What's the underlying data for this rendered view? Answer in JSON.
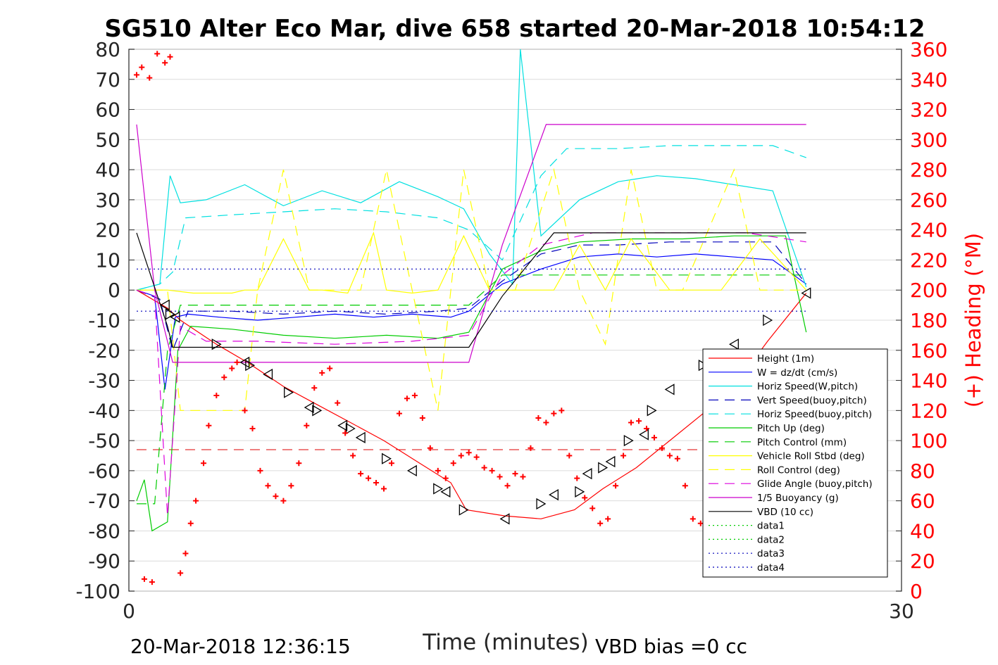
{
  "chart_data": {
    "type": "line",
    "title": "SG510 Alter Eco Mar, dive 658 started 20-Mar-2018 10:54:12",
    "xlabel": "Time (minutes)",
    "ylabel": "",
    "ylabel_right": "(+) Heading (°M)",
    "xlim": [
      0,
      30
    ],
    "ylim": [
      -100,
      80
    ],
    "ylim_right": [
      0,
      360
    ],
    "x_ticks": [
      "0",
      "30"
    ],
    "y_ticks": [
      "80",
      "70",
      "60",
      "50",
      "40",
      "30",
      "20",
      "10",
      "0",
      "-10",
      "-20",
      "-30",
      "-40",
      "-50",
      "-60",
      "-70",
      "-80",
      "-90",
      "-100"
    ],
    "y_ticks_right": [
      "360",
      "340",
      "320",
      "300",
      "280",
      "260",
      "240",
      "220",
      "200",
      "180",
      "160",
      "140",
      "120",
      "100",
      "80",
      "60",
      "40",
      "20",
      "0"
    ],
    "grid": true,
    "legend_position": "bottom-right",
    "footer_left": "20-Mar-2018 12:36:15",
    "footer_right": "VBD bias =0 cc",
    "series": [
      {
        "name": "Height (1m)",
        "color": "#ff0000",
        "style": "solid",
        "x": [
          0.3,
          1.5,
          2.0,
          3.4,
          4.6,
          6.0,
          7.3,
          8.6,
          9.9,
          11.2,
          12.5,
          13.1,
          14.6,
          16.0,
          17.3,
          18.4,
          19.7,
          21.0,
          22.3,
          23.5,
          24.8,
          26.3
        ],
        "values": [
          0,
          -6,
          -10,
          -18,
          -24,
          -32,
          -38,
          -44,
          -50,
          -57,
          -64,
          -73,
          -75,
          -76,
          -73,
          -66,
          -59,
          -50,
          -41,
          -32,
          -17,
          -1
        ]
      },
      {
        "name": "W = dz/dt (cm/s)",
        "color": "#0000ff",
        "style": "solid",
        "x": [
          0.3,
          1.0,
          1.4,
          1.8,
          2.3,
          3.5,
          5.0,
          6.5,
          8.0,
          9.5,
          11.0,
          12.5,
          13.2,
          14.5,
          16.0,
          17.5,
          19.0,
          20.5,
          22.0,
          23.5,
          25.0,
          26.3
        ],
        "values": [
          0,
          -2,
          -33,
          -9,
          -8,
          -9,
          -10,
          -9,
          -8,
          -9,
          -8,
          -9,
          -7,
          2,
          7,
          11,
          12,
          11,
          12,
          11,
          10,
          2
        ]
      },
      {
        "name": "Horiz Speed(W,pitch)",
        "color": "#00e0e0",
        "style": "solid",
        "x": [
          0.3,
          1.2,
          1.6,
          2.0,
          3.0,
          4.5,
          6.0,
          7.5,
          9.0,
          10.5,
          12.0,
          13.0,
          14.0,
          14.9,
          15.2,
          16.0,
          17.5,
          19.0,
          20.5,
          22.0,
          23.5,
          25.0,
          26.3
        ],
        "values": [
          0,
          2,
          38,
          29,
          30,
          35,
          28,
          33,
          29,
          36,
          31,
          27,
          12,
          2,
          80,
          18,
          30,
          36,
          38,
          37,
          35,
          33,
          1
        ]
      },
      {
        "name": "Vert Speed(buoy,pitch)",
        "color": "#0000bb",
        "style": "dash",
        "x": [
          0.3,
          1.2,
          1.7,
          2.3,
          4.0,
          6.0,
          8.0,
          10.0,
          12.0,
          13.2,
          14.5,
          16.0,
          17.5,
          19.0,
          21.0,
          23.0,
          25.0,
          26.3
        ],
        "values": [
          0,
          -3,
          -20,
          -7,
          -7,
          -8,
          -7,
          -8,
          -7,
          -6,
          3,
          12,
          15,
          15,
          16,
          16,
          16,
          2
        ]
      },
      {
        "name": "Horiz Speed(buoy,pitch)",
        "color": "#00e0e0",
        "style": "dash",
        "x": [
          0.3,
          1.2,
          1.7,
          2.2,
          4.0,
          6.0,
          8.0,
          10.0,
          12.0,
          13.2,
          14.5,
          16.0,
          17.0,
          19.0,
          21.0,
          23.0,
          25.0,
          26.3
        ],
        "values": [
          0,
          2,
          6,
          24,
          25,
          26,
          27,
          26,
          24,
          20,
          10,
          38,
          47,
          47,
          48,
          48,
          48,
          44
        ]
      },
      {
        "name": "Pitch Up (deg)",
        "color": "#00cc00",
        "style": "solid",
        "x": [
          0.3,
          0.6,
          0.9,
          1.5,
          1.9,
          2.4,
          4.0,
          6.0,
          8.0,
          10.0,
          12.0,
          13.2,
          14.5,
          16.0,
          17.5,
          19.5,
          21.5,
          23.5,
          25.5,
          26.3
        ],
        "values": [
          -70,
          -63,
          -80,
          -77,
          -20,
          -12,
          -13,
          -15,
          -16,
          -15,
          -16,
          -14,
          7,
          13,
          16,
          17,
          17,
          18,
          18,
          -14
        ]
      },
      {
        "name": "Pitch Control (mm)",
        "color": "#00cc00",
        "style": "dash",
        "x": [
          0.3,
          1.0,
          1.5,
          2.0,
          4.0,
          8.0,
          12.0,
          13.2,
          14.5,
          16.5,
          20.0,
          24.0,
          26.3
        ],
        "values": [
          -71,
          -71,
          -20,
          -5,
          -5,
          -5,
          -5,
          -5,
          5,
          5,
          5,
          5,
          5
        ]
      },
      {
        "name": "Vehicle Roll Stbd (deg)",
        "color": "#ffff00",
        "style": "solid",
        "x": [
          0.3,
          1.5,
          2.5,
          4.0,
          4.5,
          5.0,
          6.0,
          7.0,
          7.5,
          8.5,
          9.5,
          10.0,
          11.0,
          12.0,
          13.0,
          14.0,
          15.0,
          16.5,
          17.5,
          18.5,
          19.5,
          21.0,
          23.0,
          24.5,
          26.3
        ],
        "values": [
          0,
          0,
          -1,
          -1,
          0,
          0,
          17,
          0,
          0,
          -1,
          19,
          0,
          -1,
          0,
          18,
          0,
          0,
          0,
          15,
          0,
          17,
          0,
          0,
          17,
          0
        ]
      },
      {
        "name": "Roll Control (deg)",
        "color": "#ffff00",
        "style": "dash",
        "x": [
          0.3,
          1.5,
          2.0,
          3.5,
          4.5,
          5.0,
          6.0,
          7.0,
          8.0,
          9.0,
          10.0,
          11.0,
          12.0,
          13.0,
          14.0,
          15.0,
          16.5,
          17.5,
          18.5,
          19.5,
          20.5,
          21.5,
          23.5,
          24.5,
          26.3
        ],
        "values": [
          0,
          0,
          -40,
          -40,
          -40,
          0,
          40,
          0,
          0,
          0,
          40,
          0,
          -40,
          40,
          0,
          0,
          40,
          0,
          -18,
          40,
          0,
          0,
          40,
          0,
          0
        ]
      },
      {
        "name": "Glide Angle (buoy,pitch)",
        "color": "#dd00dd",
        "style": "dash",
        "x": [
          0.3,
          1.0,
          1.5,
          2.0,
          3.0,
          5.0,
          8.0,
          11.0,
          13.2,
          14.5,
          16.0,
          18.0,
          20.0,
          22.0,
          24.0,
          26.3
        ],
        "values": [
          0,
          -2,
          -75,
          -12,
          -17,
          -17,
          -18,
          -17,
          -15,
          5,
          15,
          19,
          19,
          19,
          19,
          16
        ]
      },
      {
        "name": "1/5 Buoyancy (g)",
        "color": "#cc00cc",
        "style": "solid",
        "x": [
          0.3,
          1.0,
          1.7,
          2.0,
          4.0,
          8.0,
          12.0,
          13.2,
          14.5,
          16.2,
          16.5,
          20.0,
          24.0,
          26.3
        ],
        "values": [
          55,
          0,
          -24,
          -24,
          -24,
          -24,
          -24,
          -24,
          15,
          55,
          55,
          55,
          55,
          55
        ]
      },
      {
        "name": "VBD (10 cc)",
        "color": "#000000",
        "style": "solid",
        "x": [
          0.3,
          1.5,
          1.7,
          4.0,
          8.0,
          12.0,
          13.2,
          14.5,
          16.5,
          20.0,
          24.0,
          26.3
        ],
        "values": [
          19,
          -12,
          -19,
          -19,
          -19,
          -19,
          -19,
          -2,
          19,
          19,
          19,
          19
        ]
      },
      {
        "name": "data1",
        "color": "#00cc00",
        "style": "dot",
        "x": [],
        "values": []
      },
      {
        "name": "data2",
        "color": "#00cc00",
        "style": "dot",
        "x": [],
        "values": []
      },
      {
        "name": "data3",
        "color": "#0000bb",
        "style": "dot",
        "x": [
          0.3,
          26.3
        ],
        "values": [
          7,
          7
        ]
      },
      {
        "name": "data4",
        "color": "#0000bb",
        "style": "dot",
        "x": [
          0.3,
          26.3
        ],
        "values": [
          -7,
          -7
        ]
      }
    ],
    "reference_line": {
      "color": "#dd0000",
      "style": "dash",
      "y": -53
    },
    "heading": {
      "color": "#ff0000",
      "marker": "+",
      "axis": "right",
      "x": [
        0.3,
        0.5,
        0.8,
        1.1,
        1.4,
        1.6,
        0.6,
        0.9,
        2.0,
        2.2,
        2.4,
        2.6,
        2.9,
        3.1,
        3.4,
        3.7,
        4.0,
        4.2,
        4.5,
        4.8,
        5.1,
        5.4,
        5.7,
        6.0,
        6.3,
        6.6,
        6.9,
        7.2,
        7.5,
        7.8,
        8.1,
        8.4,
        8.7,
        9.0,
        9.3,
        9.6,
        9.9,
        10.2,
        10.5,
        10.8,
        11.1,
        11.4,
        11.7,
        12.0,
        12.3,
        12.6,
        12.9,
        13.2,
        13.5,
        13.8,
        14.1,
        14.4,
        14.7,
        15.0,
        15.3,
        15.6,
        15.9,
        16.2,
        16.5,
        16.8,
        17.1,
        17.4,
        17.7,
        18.0,
        18.3,
        18.6,
        18.9,
        19.2,
        19.5,
        19.8,
        20.1,
        20.4,
        20.7,
        21.0,
        21.3,
        21.6,
        21.9,
        22.2,
        22.5,
        22.8,
        23.1,
        23.4,
        23.7,
        24.0,
        24.3,
        24.6
      ],
      "values": [
        343,
        348,
        341,
        357,
        351,
        355,
        8,
        6,
        12,
        25,
        45,
        60,
        85,
        110,
        130,
        142,
        148,
        152,
        120,
        108,
        80,
        70,
        63,
        60,
        70,
        85,
        110,
        135,
        145,
        148,
        125,
        105,
        90,
        78,
        75,
        72,
        68,
        85,
        118,
        128,
        130,
        115,
        95,
        80,
        75,
        85,
        90,
        92,
        89,
        82,
        80,
        76,
        70,
        78,
        76,
        95,
        115,
        112,
        118,
        120,
        90,
        75,
        62,
        55,
        45,
        48,
        70,
        90,
        112,
        113,
        108,
        102,
        95,
        90,
        88,
        70,
        48,
        45,
        55,
        68,
        85,
        98,
        108,
        112,
        106,
        104
      ]
    },
    "height_markers": {
      "color": "#000000",
      "x": [
        1.4,
        1.6,
        1.8,
        3.4,
        4.5,
        4.7,
        5.4,
        6.2,
        7.0,
        7.3,
        8.3,
        8.6,
        9.0,
        10.0,
        11.0,
        12.0,
        12.3,
        13.0,
        14.6,
        16.0,
        16.5,
        17.5,
        17.8,
        18.4,
        18.7,
        19.4,
        20.0,
        20.3,
        21.0,
        22.3,
        23.5,
        24.8,
        26.3
      ],
      "values": [
        -5,
        -8,
        -9,
        -18,
        -24,
        -25,
        -28,
        -34,
        -39,
        -40,
        -45,
        -46,
        -49,
        -56,
        -60,
        -66,
        -67,
        -73,
        -76,
        -71,
        -68,
        -67,
        -61,
        -59,
        -57,
        -50,
        -48,
        -40,
        -33,
        -25,
        -18,
        -10,
        -1
      ]
    }
  }
}
